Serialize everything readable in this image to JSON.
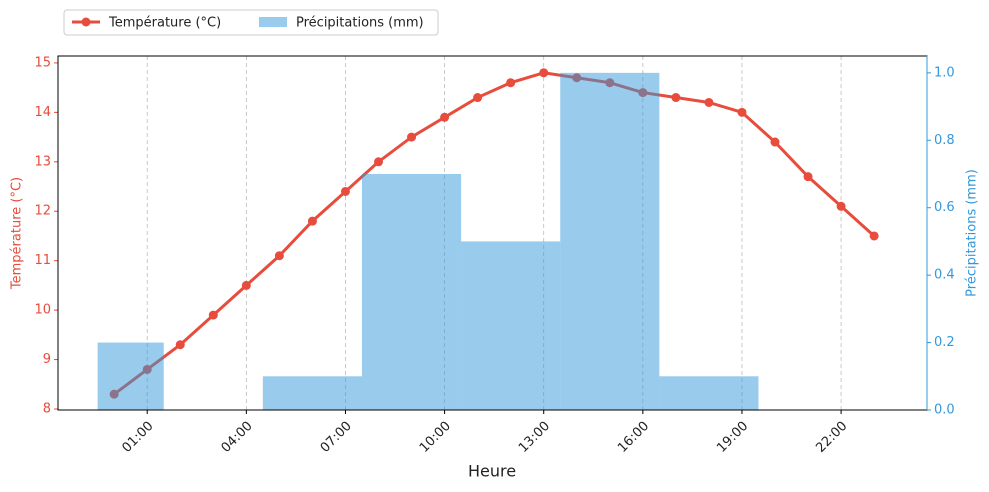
{
  "chart_data": {
    "type": "combo",
    "x_label": "Heure",
    "y_label": "Température (°C)",
    "y2_label": "Précipitations (mm)",
    "xlim": [
      -1.7,
      24.6
    ],
    "xticks": [
      {
        "value": 1,
        "label": "01:00"
      },
      {
        "value": 4,
        "label": "04:00"
      },
      {
        "value": 7,
        "label": "07:00"
      },
      {
        "value": 10,
        "label": "10:00"
      },
      {
        "value": 13,
        "label": "13:00"
      },
      {
        "value": 16,
        "label": "16:00"
      },
      {
        "value": 19,
        "label": "19:00"
      },
      {
        "value": 22,
        "label": "22:00"
      }
    ],
    "ylim": [
      7.98,
      15.14
    ],
    "yticks": [
      8,
      9,
      10,
      11,
      12,
      13,
      14,
      15
    ],
    "y2lim": [
      0,
      1.05
    ],
    "y2ticks": [
      {
        "value": 0,
        "label": "0.0"
      },
      0.2,
      0.4,
      0.6,
      0.8,
      {
        "value": 1,
        "label": "1.0"
      }
    ],
    "grid": "x",
    "legend": "top-left",
    "series": [
      {
        "name": "Température (°C)",
        "type": "line",
        "color": "#e74c3c",
        "x": [
          0,
          1,
          2,
          3,
          4,
          5,
          6,
          7,
          8,
          9,
          10,
          11,
          12,
          13,
          14,
          15,
          16,
          17,
          18,
          19,
          20,
          21,
          22,
          23
        ],
        "values": [
          8.3,
          8.8,
          9.3,
          9.9,
          10.5,
          11.1,
          11.8,
          12.4,
          13.0,
          13.5,
          13.9,
          14.3,
          14.6,
          14.8,
          14.7,
          14.6,
          14.4,
          14.3,
          14.2,
          14.0,
          13.4,
          12.7,
          12.1,
          11.5
        ]
      },
      {
        "name": "Précipitations (mm)",
        "type": "bar",
        "axis": "y2",
        "color": "#3498db",
        "alpha": 0.5,
        "bins": [
          -0.5,
          1.5,
          4.5,
          7.5,
          10.5,
          13.5,
          16.5,
          19.5
        ],
        "values": [
          0.2,
          0,
          0.1,
          0.7,
          0.5,
          1.0,
          0.1
        ]
      }
    ]
  }
}
